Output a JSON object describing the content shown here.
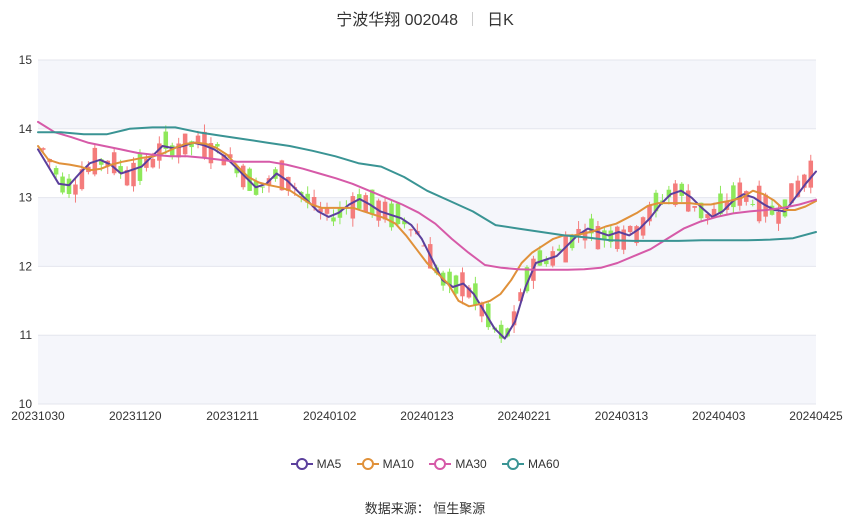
{
  "header": {
    "stock": "宁波华翔 002048",
    "period": "日K"
  },
  "source": "数据来源：  恒生聚源",
  "chart_data": {
    "type": "candlestick",
    "ylim": [
      10,
      15
    ],
    "y_ticks": [
      10,
      11,
      12,
      13,
      14,
      15
    ],
    "x_ticks": [
      "20231030",
      "20231120",
      "20231211",
      "20240102",
      "20240123",
      "20240221",
      "20240313",
      "20240403",
      "20240425"
    ],
    "grid": "horizontal bands",
    "legend": "bottom",
    "up_color": "#f47c7c",
    "down_color": "#8ee85a",
    "ma_series": [
      {
        "name": "MA5",
        "color": "#5b3f9c",
        "values": [
          13.7,
          13.45,
          13.2,
          13.18,
          13.35,
          13.5,
          13.55,
          13.48,
          13.35,
          13.4,
          13.45,
          13.6,
          13.75,
          13.72,
          13.75,
          13.8,
          13.76,
          13.7,
          13.6,
          13.45,
          13.3,
          13.15,
          13.2,
          13.35,
          13.25,
          13.1,
          12.95,
          12.8,
          12.72,
          12.78,
          12.9,
          12.98,
          12.9,
          12.8,
          12.75,
          12.7,
          12.6,
          12.4,
          12.1,
          11.8,
          11.7,
          11.75,
          11.6,
          11.35,
          11.1,
          10.95,
          11.2,
          11.7,
          12.05,
          12.1,
          12.15,
          12.3,
          12.45,
          12.55,
          12.5,
          12.45,
          12.5,
          12.45,
          12.55,
          12.7,
          12.9,
          13.05,
          13.1,
          13.0,
          12.85,
          12.72,
          12.8,
          12.95,
          13.05,
          13.0,
          12.9,
          12.82,
          12.8,
          13.0,
          13.2,
          13.38
        ]
      },
      {
        "name": "MA10",
        "color": "#e0913a",
        "values": [
          13.75,
          13.55,
          13.5,
          13.48,
          13.45,
          13.4,
          13.42,
          13.48,
          13.52,
          13.55,
          13.58,
          13.6,
          13.65,
          13.72,
          13.78,
          13.8,
          13.78,
          13.72,
          13.62,
          13.45,
          13.3,
          13.22,
          13.18,
          13.15,
          13.1,
          13.0,
          12.9,
          12.85,
          12.85,
          12.85,
          12.85,
          12.8,
          12.75,
          12.7,
          12.62,
          12.45,
          12.25,
          12.05,
          11.9,
          11.75,
          11.5,
          11.42,
          11.45,
          11.5,
          11.6,
          11.8,
          12.05,
          12.2,
          12.3,
          12.4,
          12.45,
          12.45,
          12.48,
          12.52,
          12.58,
          12.62,
          12.7,
          12.78,
          12.88,
          12.92,
          12.92,
          12.92,
          12.92,
          12.9,
          12.9,
          12.93,
          12.96,
          13.0,
          13.1,
          13.05,
          12.96,
          12.82,
          12.82,
          12.87,
          12.95
        ]
      },
      {
        "name": "MA30",
        "color": "#d65aa8",
        "values": [
          14.1,
          13.95,
          13.88,
          13.8,
          13.75,
          13.7,
          13.65,
          13.62,
          13.6,
          13.6,
          13.58,
          13.55,
          13.52,
          13.52,
          13.52,
          13.48,
          13.42,
          13.35,
          13.28,
          13.2,
          13.1,
          13.0,
          12.9,
          12.78,
          12.62,
          12.4,
          12.2,
          12.02,
          11.98,
          11.96,
          11.95,
          11.95,
          11.95,
          11.96,
          11.98,
          12.05,
          12.15,
          12.25,
          12.4,
          12.55,
          12.65,
          12.72,
          12.77,
          12.8,
          12.82,
          12.85,
          12.9,
          12.97
        ]
      },
      {
        "name": "MA60",
        "color": "#3a9494",
        "values": [
          13.95,
          13.95,
          13.92,
          13.92,
          14.0,
          14.02,
          14.02,
          13.95,
          13.9,
          13.85,
          13.8,
          13.75,
          13.68,
          13.6,
          13.5,
          13.45,
          13.3,
          13.1,
          12.95,
          12.8,
          12.6,
          12.55,
          12.5,
          12.45,
          12.42,
          12.38,
          12.37,
          12.37,
          12.37,
          12.38,
          12.38,
          12.38,
          12.39,
          12.41,
          12.5
        ]
      }
    ]
  }
}
